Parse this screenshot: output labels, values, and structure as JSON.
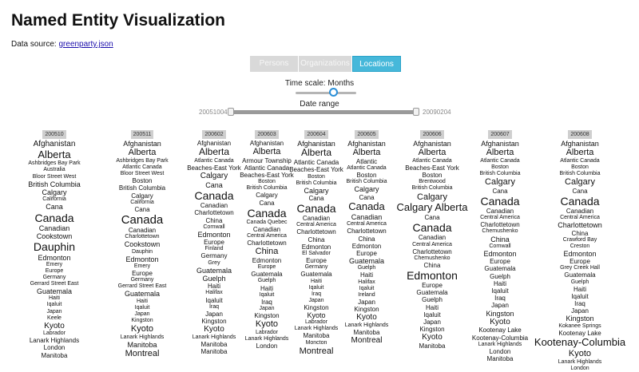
{
  "title": "Named Entity Visualization",
  "source_label": "Data source:",
  "source_link": "greenparty.json",
  "tabs": [
    "Persons",
    "Organizations",
    "Locations"
  ],
  "active_tab": "Locations",
  "time_scale_label": "Time scale:",
  "time_scale_value": "Months",
  "date_range_label": "Date range",
  "date_start": "20051004",
  "date_end": "20090204",
  "colors": {
    "accent": "#46b8da",
    "tab_inactive": "#d9d9d9",
    "link": "#1a0dab"
  },
  "columns": [
    {
      "date": "200510",
      "words": [
        [
          "Afghanistan",
          10
        ],
        [
          "Alberta",
          13
        ],
        [
          "Ashbridges Bay Park",
          7
        ],
        [
          "Australia",
          7
        ],
        [
          "Bloor Street West",
          7
        ],
        [
          "British Columbia",
          9
        ],
        [
          "Calgary",
          9
        ],
        [
          "California",
          7
        ],
        [
          "Cana",
          9
        ],
        [
          "Canada",
          14
        ],
        [
          "Canadian",
          9
        ],
        [
          "Cookstown",
          9
        ],
        [
          "Dauphin",
          14
        ],
        [
          "Edmonton",
          9
        ],
        [
          "Emery",
          7
        ],
        [
          "Europe",
          7
        ],
        [
          "Germany",
          7
        ],
        [
          "Gerrard Street East",
          7
        ],
        [
          "Guatemala",
          9
        ],
        [
          "Haiti",
          7
        ],
        [
          "Iqaluit",
          7
        ],
        [
          "Japan",
          7
        ],
        [
          "Keele",
          7
        ],
        [
          "Kyoto",
          10
        ],
        [
          "Labrador",
          7
        ],
        [
          "Lanark Highlands",
          8
        ],
        [
          "London",
          8
        ],
        [
          "Manitoba",
          8
        ]
      ]
    },
    {
      "date": "200511",
      "words": [
        [
          "Afghanistan",
          9
        ],
        [
          "Alberta",
          11
        ],
        [
          "Ashbridges Bay Park",
          7
        ],
        [
          "Atlantic Canada",
          7
        ],
        [
          "Bloor Street West",
          7
        ],
        [
          "Boston",
          8
        ],
        [
          "British Columbia",
          8
        ],
        [
          "Calgary",
          8
        ],
        [
          "California",
          7
        ],
        [
          "Cana",
          8
        ],
        [
          "Canada",
          15
        ],
        [
          "Canadian",
          8
        ],
        [
          "Charlottetown",
          7
        ],
        [
          "Cookstown",
          9
        ],
        [
          "Dauphin",
          7
        ],
        [
          "Edmonton",
          9
        ],
        [
          "Emery",
          7
        ],
        [
          "Europe",
          8
        ],
        [
          "Germany",
          7
        ],
        [
          "Gerrard Street East",
          7
        ],
        [
          "Guatemala",
          9
        ],
        [
          "Haiti",
          7
        ],
        [
          "Iqaluit",
          7
        ],
        [
          "Japan",
          7
        ],
        [
          "Kingston",
          7
        ],
        [
          "Kyoto",
          11
        ],
        [
          "Lanark Highlands",
          7
        ],
        [
          "Manitoba",
          9
        ],
        [
          "Montreal",
          11
        ]
      ]
    },
    {
      "date": "200602",
      "words": [
        [
          "Afghanistan",
          8
        ],
        [
          "Alberta",
          12
        ],
        [
          "Atlantic Canada",
          7
        ],
        [
          "Beaches-East York",
          8
        ],
        [
          "Calgary",
          10
        ],
        [
          "Cana",
          9
        ],
        [
          "Canada",
          14
        ],
        [
          "Canadian",
          8
        ],
        [
          "Charlottetown",
          8
        ],
        [
          "China",
          8
        ],
        [
          "Cornwall",
          7
        ],
        [
          "Edmonton",
          9
        ],
        [
          "Europe",
          8
        ],
        [
          "Finland",
          7
        ],
        [
          "Germany",
          8
        ],
        [
          "Grey",
          7
        ],
        [
          "Guatemala",
          9
        ],
        [
          "Guelph",
          9
        ],
        [
          "Haiti",
          8
        ],
        [
          "Halifax",
          7
        ],
        [
          "Iqaluit",
          8
        ],
        [
          "Iraq",
          7
        ],
        [
          "Japan",
          8
        ],
        [
          "Kingston",
          8
        ],
        [
          "Kyoto",
          10
        ],
        [
          "Lanark Highlands",
          7
        ],
        [
          "Manitoba",
          8
        ],
        [
          "Manitoba",
          8
        ]
      ]
    },
    {
      "date": "200603",
      "words": [
        [
          "Afghanistan",
          8
        ],
        [
          "Alberta",
          11
        ],
        [
          "Armour Township",
          8
        ],
        [
          "Atlantic Canada",
          8
        ],
        [
          "Beaches-East York",
          8
        ],
        [
          "Boston",
          7
        ],
        [
          "British Columbia",
          7
        ],
        [
          "Calgary",
          8
        ],
        [
          "Cana",
          8
        ],
        [
          "Canada",
          14
        ],
        [
          "Canada Quebec",
          7
        ],
        [
          "Canadian",
          8
        ],
        [
          "Central America",
          7
        ],
        [
          "Charlottetown",
          8
        ],
        [
          "China",
          11
        ],
        [
          "Edmonton",
          8
        ],
        [
          "Europe",
          7
        ],
        [
          "Guatemala",
          8
        ],
        [
          "Guelph",
          7
        ],
        [
          "Haiti",
          8
        ],
        [
          "Iqaluit",
          7
        ],
        [
          "Iraq",
          8
        ],
        [
          "Japan",
          7
        ],
        [
          "Kingston",
          8
        ],
        [
          "Kyoto",
          11
        ],
        [
          "Labrador",
          7
        ],
        [
          "Lanark Highlands",
          7
        ],
        [
          "London",
          8
        ]
      ]
    },
    {
      "date": "200604",
      "words": [
        [
          "Afghanistan",
          9
        ],
        [
          "Alberta",
          12
        ],
        [
          "Atlantic Canada",
          8
        ],
        [
          "Beaches-East York",
          8
        ],
        [
          "Boston",
          7
        ],
        [
          "British Columbia",
          7
        ],
        [
          "Calgary",
          9
        ],
        [
          "Cana",
          8
        ],
        [
          "Canada",
          14
        ],
        [
          "Canadian",
          8
        ],
        [
          "Central America",
          7
        ],
        [
          "Charlottetown",
          8
        ],
        [
          "China",
          8
        ],
        [
          "Edmonton",
          8
        ],
        [
          "El Salvador",
          7
        ],
        [
          "Europe",
          8
        ],
        [
          "Germany",
          7
        ],
        [
          "Guatemala",
          8
        ],
        [
          "Haiti",
          7
        ],
        [
          "Iqaluit",
          7
        ],
        [
          "Iraq",
          7
        ],
        [
          "Japan",
          7
        ],
        [
          "Kingston",
          8
        ],
        [
          "Kyoto",
          9
        ],
        [
          "Labrador",
          7
        ],
        [
          "Lanark Highlands",
          7
        ],
        [
          "Manitoba",
          8
        ],
        [
          "Moncton",
          7
        ],
        [
          "Montreal",
          11
        ]
      ]
    },
    {
      "date": "200605",
      "words": [
        [
          "Afghanistan",
          9
        ],
        [
          "Alberta",
          11
        ],
        [
          "Atlantic",
          8
        ],
        [
          "Atlantic Canada",
          7
        ],
        [
          "Boston",
          8
        ],
        [
          "British Columbia",
          7
        ],
        [
          "Calgary",
          9
        ],
        [
          "Cana",
          8
        ],
        [
          "Canada",
          13
        ],
        [
          "Canadian",
          9
        ],
        [
          "Central America",
          7
        ],
        [
          "Charlottetown",
          8
        ],
        [
          "China",
          8
        ],
        [
          "Edmonton",
          8
        ],
        [
          "Europe",
          8
        ],
        [
          "Guatemala",
          9
        ],
        [
          "Guelph",
          7
        ],
        [
          "Haiti",
          8
        ],
        [
          "Halifax",
          7
        ],
        [
          "Iqaluit",
          7
        ],
        [
          "Ireland",
          7
        ],
        [
          "Japan",
          8
        ],
        [
          "Kingston",
          8
        ],
        [
          "Kyoto",
          10
        ],
        [
          "Lanark Highlands",
          7
        ],
        [
          "Manitoba",
          8
        ],
        [
          "Montreal",
          10
        ]
      ]
    },
    {
      "date": "200606",
      "words": [
        [
          "Afghanistan",
          9
        ],
        [
          "Alberta",
          11
        ],
        [
          "Atlantic Canada",
          7
        ],
        [
          "Beaches-East York",
          8
        ],
        [
          "Boston",
          8
        ],
        [
          "Brentwood",
          7
        ],
        [
          "British Columbia",
          7
        ],
        [
          "Calgary",
          11
        ],
        [
          "Calgary Alberta",
          13
        ],
        [
          "Cana",
          8
        ],
        [
          "Canada",
          14
        ],
        [
          "Canadian",
          8
        ],
        [
          "Central America",
          7
        ],
        [
          "Charlottetown",
          8
        ],
        [
          "Chemushenko",
          7
        ],
        [
          "China",
          8
        ],
        [
          "Edmonton",
          14
        ],
        [
          "Europe",
          8
        ],
        [
          "Guatemala",
          8
        ],
        [
          "Guelph",
          8
        ],
        [
          "Haiti",
          8
        ],
        [
          "Iqaluit",
          8
        ],
        [
          "Japan",
          8
        ],
        [
          "Kingston",
          8
        ],
        [
          "Kyoto",
          10
        ],
        [
          "Manitoba",
          8
        ]
      ]
    },
    {
      "date": "200607",
      "words": [
        [
          "Afghanistan",
          9
        ],
        [
          "Alberta",
          11
        ],
        [
          "Atlantic Canada",
          7
        ],
        [
          "Boston",
          7
        ],
        [
          "British Columbia",
          7
        ],
        [
          "Calgary",
          11
        ],
        [
          "Cana",
          8
        ],
        [
          "Canada",
          14
        ],
        [
          "Canadian",
          8
        ],
        [
          "Central America",
          7
        ],
        [
          "Charlottetown",
          8
        ],
        [
          "Chemushenko",
          7
        ],
        [
          "China",
          9
        ],
        [
          "Cornwall",
          7
        ],
        [
          "Edmonton",
          9
        ],
        [
          "Europe",
          8
        ],
        [
          "Guatemala",
          8
        ],
        [
          "Guelph",
          8
        ],
        [
          "Haiti",
          8
        ],
        [
          "Iqaluit",
          8
        ],
        [
          "Iraq",
          8
        ],
        [
          "Japan",
          8
        ],
        [
          "Kingston",
          9
        ],
        [
          "Kyoto",
          10
        ],
        [
          "Kootenay Lake",
          8
        ],
        [
          "Kootenay-Columbia",
          8
        ],
        [
          "Lanark Highlands",
          7
        ],
        [
          "London",
          8
        ],
        [
          "Manitoba",
          8
        ]
      ]
    },
    {
      "date": "200608",
      "words": [
        [
          "Afghanistan",
          9
        ],
        [
          "Alberta",
          11
        ],
        [
          "Atlantic Canada",
          7
        ],
        [
          "Boston",
          7
        ],
        [
          "British Columbia",
          7
        ],
        [
          "Calgary",
          11
        ],
        [
          "Cana",
          8
        ],
        [
          "Canada",
          14
        ],
        [
          "Canadian",
          8
        ],
        [
          "Central America",
          7
        ],
        [
          "Charlottetown",
          9
        ],
        [
          "China",
          8
        ],
        [
          "Crawford Bay",
          7
        ],
        [
          "Creston",
          7
        ],
        [
          "Edmonton",
          9
        ],
        [
          "Europe",
          8
        ],
        [
          "Grey Creek Hall",
          7
        ],
        [
          "Guatemala",
          8
        ],
        [
          "Guelph",
          7
        ],
        [
          "Haiti",
          8
        ],
        [
          "Iqaluit",
          8
        ],
        [
          "Iraq",
          8
        ],
        [
          "Japan",
          8
        ],
        [
          "Kingston",
          9
        ],
        [
          "Kokanee Springs",
          7
        ],
        [
          "Kootenay Lake",
          8
        ],
        [
          "Kootenay-Columbia",
          13
        ],
        [
          "Kyoto",
          11
        ],
        [
          "Lanark Highlands",
          7
        ],
        [
          "London",
          7
        ]
      ]
    }
  ]
}
